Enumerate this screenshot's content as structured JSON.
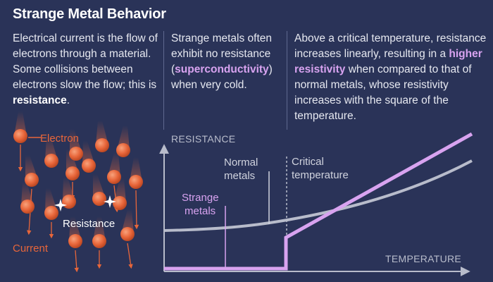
{
  "title": "Strange Metal Behavior",
  "col1": {
    "text_a": "Electrical current is the flow of electrons through a material. Some collisions between electrons slow the flow; this is ",
    "bold": "resistance",
    "text_b": "."
  },
  "col2": {
    "text_a": "Strange metals often exhibit no resistance (",
    "highlight": "superconductivity",
    "text_b": ") when very cold."
  },
  "col3": {
    "text_a": "Above a critical temperature, resistance increases linearly, resulting in a ",
    "highlight": "higher resistivity",
    "text_b": " when compared to that of normal metals, whose resistivity increases with the square of the temperature."
  },
  "illustration": {
    "electron_label": "Electron",
    "resistance_label": "Resistance",
    "current_label": "Current"
  },
  "graph": {
    "y_axis_label": "RESISTANCE",
    "x_axis_label": "TEMPERATURE",
    "normal_label_1": "Normal",
    "normal_label_2": "metals",
    "critical_label_1": "Critical",
    "critical_label_2": "temperature",
    "strange_label_1": "Strange",
    "strange_label_2": "metals"
  },
  "colors": {
    "background": "#2a3358",
    "electron": "#e8663a",
    "strange_line": "#d8a3f0",
    "normal_line": "#b8bccb",
    "axis": "#b8bccb"
  }
}
